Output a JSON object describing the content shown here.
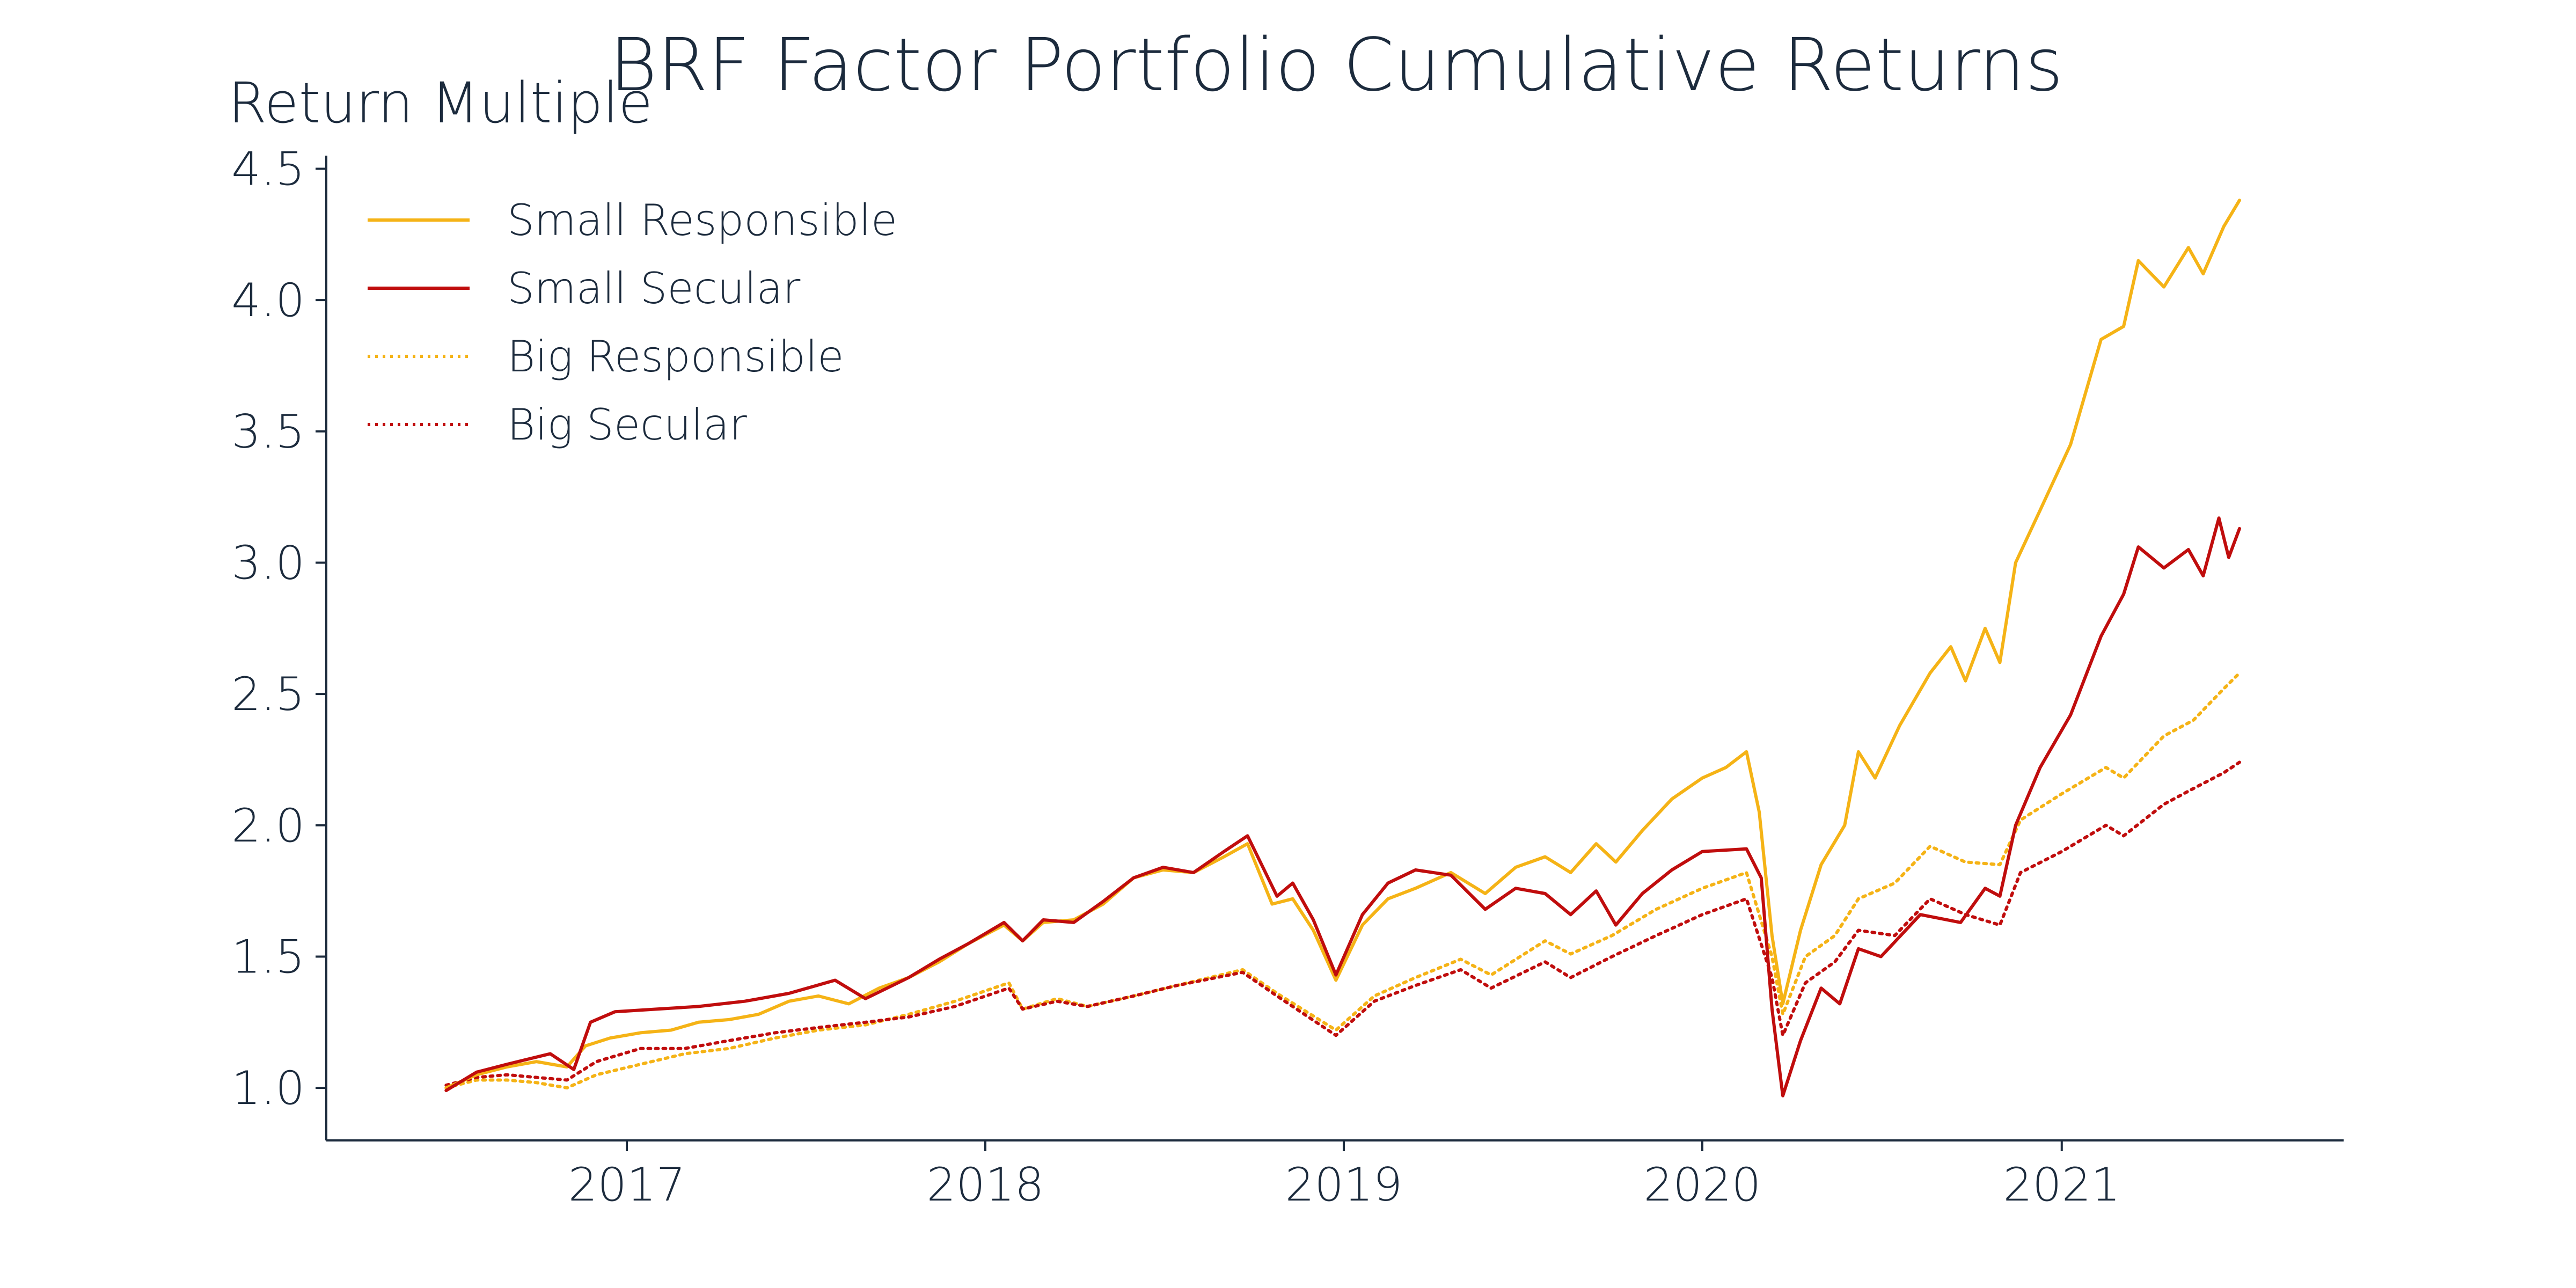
{
  "chart_data": {
    "type": "line",
    "title": "BRF Factor Portfolio Cumulative Returns",
    "xlabel": "",
    "ylabel": "Return Multiple",
    "xlim": [
      "2016-03-01",
      "2021-10-15"
    ],
    "ylim": [
      0.8,
      4.55
    ],
    "x_ticks": [
      "2017",
      "2018",
      "2019",
      "2020",
      "2021"
    ],
    "x_tick_dates": [
      "2017-01-01",
      "2018-01-01",
      "2019-01-01",
      "2020-01-01",
      "2021-01-01"
    ],
    "y_ticks": [
      1.0,
      1.5,
      2.0,
      2.5,
      3.0,
      3.5,
      4.0,
      4.5
    ],
    "y_tick_labels": [
      "1.0",
      "1.5",
      "2.0",
      "2.5",
      "3.0",
      "3.5",
      "4.0",
      "4.5"
    ],
    "grid": false,
    "legend": "top-left",
    "series": [
      {
        "name": "Small Responsible",
        "color": "#F5B316",
        "style": "solid",
        "points": [
          [
            "2016-07-01",
            1.0
          ],
          [
            "2016-08-01",
            1.05
          ],
          [
            "2016-09-01",
            1.08
          ],
          [
            "2016-10-01",
            1.1
          ],
          [
            "2016-11-01",
            1.08
          ],
          [
            "2016-11-20",
            1.16
          ],
          [
            "2016-12-15",
            1.19
          ],
          [
            "2017-01-15",
            1.21
          ],
          [
            "2017-02-15",
            1.22
          ],
          [
            "2017-03-15",
            1.25
          ],
          [
            "2017-04-15",
            1.26
          ],
          [
            "2017-05-15",
            1.28
          ],
          [
            "2017-06-15",
            1.33
          ],
          [
            "2017-07-15",
            1.35
          ],
          [
            "2017-08-15",
            1.32
          ],
          [
            "2017-09-15",
            1.38
          ],
          [
            "2017-10-15",
            1.42
          ],
          [
            "2017-11-15",
            1.48
          ],
          [
            "2017-12-15",
            1.55
          ],
          [
            "2018-01-20",
            1.62
          ],
          [
            "2018-02-08",
            1.56
          ],
          [
            "2018-03-01",
            1.63
          ],
          [
            "2018-04-01",
            1.64
          ],
          [
            "2018-05-01",
            1.7
          ],
          [
            "2018-06-01",
            1.8
          ],
          [
            "2018-07-01",
            1.83
          ],
          [
            "2018-08-01",
            1.82
          ],
          [
            "2018-09-01",
            1.88
          ],
          [
            "2018-09-25",
            1.93
          ],
          [
            "2018-10-20",
            1.7
          ],
          [
            "2018-11-10",
            1.72
          ],
          [
            "2018-12-01",
            1.6
          ],
          [
            "2018-12-24",
            1.41
          ],
          [
            "2019-01-20",
            1.62
          ],
          [
            "2019-02-15",
            1.72
          ],
          [
            "2019-03-15",
            1.76
          ],
          [
            "2019-04-20",
            1.82
          ],
          [
            "2019-05-25",
            1.74
          ],
          [
            "2019-06-25",
            1.84
          ],
          [
            "2019-07-25",
            1.88
          ],
          [
            "2019-08-20",
            1.82
          ],
          [
            "2019-09-15",
            1.93
          ],
          [
            "2019-10-05",
            1.86
          ],
          [
            "2019-11-01",
            1.98
          ],
          [
            "2019-12-01",
            2.1
          ],
          [
            "2020-01-01",
            2.18
          ],
          [
            "2020-01-25",
            2.22
          ],
          [
            "2020-02-15",
            2.28
          ],
          [
            "2020-02-28",
            2.05
          ],
          [
            "2020-03-12",
            1.58
          ],
          [
            "2020-03-23",
            1.32
          ],
          [
            "2020-04-10",
            1.6
          ],
          [
            "2020-05-01",
            1.85
          ],
          [
            "2020-05-25",
            2.0
          ],
          [
            "2020-06-08",
            2.28
          ],
          [
            "2020-06-25",
            2.18
          ],
          [
            "2020-07-20",
            2.38
          ],
          [
            "2020-08-20",
            2.58
          ],
          [
            "2020-09-10",
            2.68
          ],
          [
            "2020-09-25",
            2.55
          ],
          [
            "2020-10-15",
            2.75
          ],
          [
            "2020-10-30",
            2.62
          ],
          [
            "2020-11-15",
            3.0
          ],
          [
            "2020-12-10",
            3.2
          ],
          [
            "2021-01-10",
            3.45
          ],
          [
            "2021-02-10",
            3.85
          ],
          [
            "2021-03-05",
            3.9
          ],
          [
            "2021-03-20",
            4.15
          ],
          [
            "2021-04-15",
            4.05
          ],
          [
            "2021-05-10",
            4.2
          ],
          [
            "2021-05-25",
            4.1
          ],
          [
            "2021-06-15",
            4.28
          ],
          [
            "2021-07-01",
            4.38
          ]
        ]
      },
      {
        "name": "Small Secular",
        "color": "#C00D0D",
        "style": "solid",
        "points": [
          [
            "2016-07-01",
            0.99
          ],
          [
            "2016-08-01",
            1.06
          ],
          [
            "2016-09-01",
            1.09
          ],
          [
            "2016-10-15",
            1.13
          ],
          [
            "2016-11-08",
            1.07
          ],
          [
            "2016-11-25",
            1.25
          ],
          [
            "2016-12-20",
            1.29
          ],
          [
            "2017-02-01",
            1.3
          ],
          [
            "2017-03-15",
            1.31
          ],
          [
            "2017-05-01",
            1.33
          ],
          [
            "2017-06-15",
            1.36
          ],
          [
            "2017-08-01",
            1.41
          ],
          [
            "2017-09-01",
            1.34
          ],
          [
            "2017-10-15",
            1.42
          ],
          [
            "2017-11-15",
            1.49
          ],
          [
            "2017-12-15",
            1.55
          ],
          [
            "2018-01-20",
            1.63
          ],
          [
            "2018-02-08",
            1.56
          ],
          [
            "2018-03-01",
            1.64
          ],
          [
            "2018-04-01",
            1.63
          ],
          [
            "2018-05-01",
            1.71
          ],
          [
            "2018-06-01",
            1.8
          ],
          [
            "2018-07-01",
            1.84
          ],
          [
            "2018-08-01",
            1.82
          ],
          [
            "2018-09-01",
            1.9
          ],
          [
            "2018-09-25",
            1.96
          ],
          [
            "2018-10-25",
            1.73
          ],
          [
            "2018-11-10",
            1.78
          ],
          [
            "2018-12-01",
            1.64
          ],
          [
            "2018-12-24",
            1.43
          ],
          [
            "2019-01-20",
            1.66
          ],
          [
            "2019-02-15",
            1.78
          ],
          [
            "2019-03-15",
            1.83
          ],
          [
            "2019-04-20",
            1.81
          ],
          [
            "2019-05-25",
            1.68
          ],
          [
            "2019-06-25",
            1.76
          ],
          [
            "2019-07-25",
            1.74
          ],
          [
            "2019-08-20",
            1.66
          ],
          [
            "2019-09-15",
            1.75
          ],
          [
            "2019-10-05",
            1.62
          ],
          [
            "2019-11-01",
            1.74
          ],
          [
            "2019-12-01",
            1.83
          ],
          [
            "2020-01-01",
            1.9
          ],
          [
            "2020-02-15",
            1.91
          ],
          [
            "2020-03-01",
            1.8
          ],
          [
            "2020-03-12",
            1.3
          ],
          [
            "2020-03-23",
            0.97
          ],
          [
            "2020-04-10",
            1.18
          ],
          [
            "2020-05-01",
            1.38
          ],
          [
            "2020-05-20",
            1.32
          ],
          [
            "2020-06-08",
            1.53
          ],
          [
            "2020-07-01",
            1.5
          ],
          [
            "2020-08-10",
            1.66
          ],
          [
            "2020-09-20",
            1.63
          ],
          [
            "2020-10-15",
            1.76
          ],
          [
            "2020-10-30",
            1.73
          ],
          [
            "2020-11-15",
            2.0
          ],
          [
            "2020-12-10",
            2.22
          ],
          [
            "2021-01-10",
            2.42
          ],
          [
            "2021-02-10",
            2.72
          ],
          [
            "2021-03-05",
            2.88
          ],
          [
            "2021-03-20",
            3.06
          ],
          [
            "2021-04-15",
            2.98
          ],
          [
            "2021-05-10",
            3.05
          ],
          [
            "2021-05-25",
            2.95
          ],
          [
            "2021-06-10",
            3.17
          ],
          [
            "2021-06-20",
            3.02
          ],
          [
            "2021-07-01",
            3.13
          ]
        ]
      },
      {
        "name": "Big Responsible",
        "color": "#F5B316",
        "style": "dotted",
        "points": [
          [
            "2016-07-01",
            1.0
          ],
          [
            "2016-08-01",
            1.03
          ],
          [
            "2016-09-01",
            1.03
          ],
          [
            "2016-10-01",
            1.02
          ],
          [
            "2016-11-01",
            1.0
          ],
          [
            "2016-12-01",
            1.05
          ],
          [
            "2017-01-15",
            1.09
          ],
          [
            "2017-03-01",
            1.13
          ],
          [
            "2017-04-15",
            1.15
          ],
          [
            "2017-06-01",
            1.19
          ],
          [
            "2017-07-15",
            1.22
          ],
          [
            "2017-09-01",
            1.24
          ],
          [
            "2017-10-15",
            1.28
          ],
          [
            "2017-12-01",
            1.33
          ],
          [
            "2018-01-25",
            1.4
          ],
          [
            "2018-02-08",
            1.3
          ],
          [
            "2018-03-15",
            1.34
          ],
          [
            "2018-04-15",
            1.31
          ],
          [
            "2018-06-01",
            1.35
          ],
          [
            "2018-07-15",
            1.39
          ],
          [
            "2018-09-20",
            1.45
          ],
          [
            "2018-10-25",
            1.36
          ],
          [
            "2018-12-24",
            1.22
          ],
          [
            "2019-02-01",
            1.35
          ],
          [
            "2019-03-15",
            1.42
          ],
          [
            "2019-04-30",
            1.49
          ],
          [
            "2019-05-31",
            1.43
          ],
          [
            "2019-07-25",
            1.56
          ],
          [
            "2019-08-20",
            1.51
          ],
          [
            "2019-10-01",
            1.58
          ],
          [
            "2019-11-15",
            1.68
          ],
          [
            "2020-01-01",
            1.76
          ],
          [
            "2020-02-15",
            1.82
          ],
          [
            "2020-03-12",
            1.5
          ],
          [
            "2020-03-23",
            1.28
          ],
          [
            "2020-04-15",
            1.5
          ],
          [
            "2020-05-15",
            1.58
          ],
          [
            "2020-06-08",
            1.72
          ],
          [
            "2020-07-15",
            1.78
          ],
          [
            "2020-08-20",
            1.92
          ],
          [
            "2020-09-25",
            1.86
          ],
          [
            "2020-10-30",
            1.85
          ],
          [
            "2020-11-20",
            2.02
          ],
          [
            "2021-01-01",
            2.12
          ],
          [
            "2021-02-15",
            2.22
          ],
          [
            "2021-03-05",
            2.18
          ],
          [
            "2021-04-15",
            2.34
          ],
          [
            "2021-05-15",
            2.4
          ],
          [
            "2021-06-15",
            2.52
          ],
          [
            "2021-07-01",
            2.58
          ]
        ]
      },
      {
        "name": "Big Secular",
        "color": "#C00D0D",
        "style": "dotted",
        "points": [
          [
            "2016-07-01",
            1.01
          ],
          [
            "2016-08-01",
            1.04
          ],
          [
            "2016-09-01",
            1.05
          ],
          [
            "2016-10-01",
            1.04
          ],
          [
            "2016-11-01",
            1.03
          ],
          [
            "2016-12-01",
            1.1
          ],
          [
            "2017-01-15",
            1.15
          ],
          [
            "2017-03-01",
            1.15
          ],
          [
            "2017-04-15",
            1.18
          ],
          [
            "2017-06-01",
            1.21
          ],
          [
            "2017-07-15",
            1.23
          ],
          [
            "2017-09-01",
            1.25
          ],
          [
            "2017-10-15",
            1.27
          ],
          [
            "2017-12-01",
            1.31
          ],
          [
            "2018-01-25",
            1.38
          ],
          [
            "2018-02-08",
            1.3
          ],
          [
            "2018-03-15",
            1.33
          ],
          [
            "2018-04-15",
            1.31
          ],
          [
            "2018-06-01",
            1.35
          ],
          [
            "2018-07-15",
            1.39
          ],
          [
            "2018-09-20",
            1.44
          ],
          [
            "2018-10-25",
            1.35
          ],
          [
            "2018-12-24",
            1.2
          ],
          [
            "2019-02-01",
            1.33
          ],
          [
            "2019-03-15",
            1.39
          ],
          [
            "2019-04-30",
            1.45
          ],
          [
            "2019-05-31",
            1.38
          ],
          [
            "2019-07-25",
            1.48
          ],
          [
            "2019-08-20",
            1.42
          ],
          [
            "2019-10-01",
            1.5
          ],
          [
            "2019-11-15",
            1.58
          ],
          [
            "2020-01-01",
            1.66
          ],
          [
            "2020-02-15",
            1.72
          ],
          [
            "2020-03-12",
            1.42
          ],
          [
            "2020-03-23",
            1.2
          ],
          [
            "2020-04-15",
            1.4
          ],
          [
            "2020-05-15",
            1.48
          ],
          [
            "2020-06-08",
            1.6
          ],
          [
            "2020-07-15",
            1.58
          ],
          [
            "2020-08-20",
            1.72
          ],
          [
            "2020-09-25",
            1.66
          ],
          [
            "2020-10-30",
            1.62
          ],
          [
            "2020-11-20",
            1.82
          ],
          [
            "2021-01-01",
            1.9
          ],
          [
            "2021-02-15",
            2.0
          ],
          [
            "2021-03-05",
            1.96
          ],
          [
            "2021-04-15",
            2.08
          ],
          [
            "2021-05-15",
            2.14
          ],
          [
            "2021-06-15",
            2.2
          ],
          [
            "2021-07-01",
            2.24
          ]
        ]
      }
    ]
  }
}
